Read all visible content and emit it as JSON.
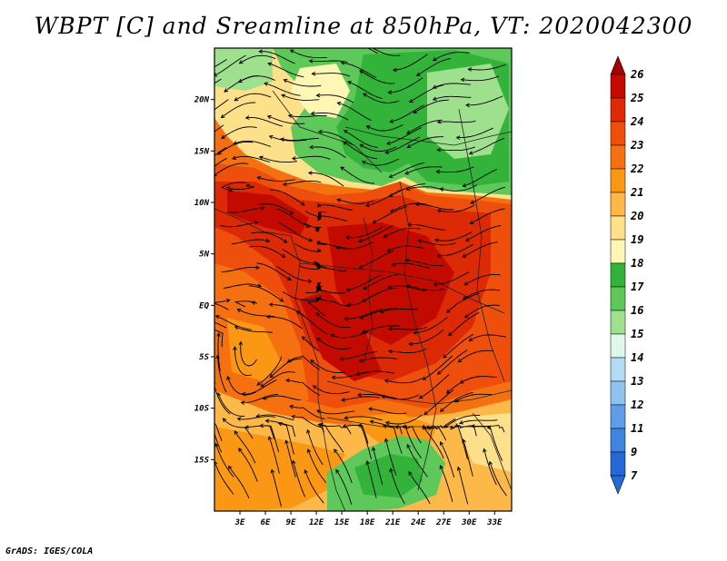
{
  "title": "WBPT [C] and Sreamline at 850hPa, VT: 2020042300",
  "credit": "GrADS: IGES/COLA",
  "map": {
    "variable": "Wet-bulb potential temperature",
    "units": "C",
    "level": "850hPa",
    "valid_time": "2020042300",
    "lon_range": [
      0,
      35
    ],
    "lat_range": [
      -20,
      25
    ],
    "lat_ticks": [
      {
        "value": 20,
        "label": "20N"
      },
      {
        "value": 15,
        "label": "15N"
      },
      {
        "value": 10,
        "label": "10N"
      },
      {
        "value": 5,
        "label": "5N"
      },
      {
        "value": 0,
        "label": "EQ"
      },
      {
        "value": -5,
        "label": "5S"
      },
      {
        "value": -10,
        "label": "10S"
      },
      {
        "value": -15,
        "label": "15S"
      }
    ],
    "lon_ticks": [
      {
        "value": 3,
        "label": "3E"
      },
      {
        "value": 6,
        "label": "6E"
      },
      {
        "value": 9,
        "label": "9E"
      },
      {
        "value": 12,
        "label": "12E"
      },
      {
        "value": 15,
        "label": "15E"
      },
      {
        "value": 18,
        "label": "18E"
      },
      {
        "value": 21,
        "label": "21E"
      },
      {
        "value": 24,
        "label": "24E"
      },
      {
        "value": 27,
        "label": "27E"
      },
      {
        "value": 30,
        "label": "30E"
      },
      {
        "value": 33,
        "label": "33E"
      }
    ]
  },
  "colorbar": {
    "levels": [
      {
        "label": "26",
        "color": "#a50000"
      },
      {
        "label": "25",
        "color": "#c20a00"
      },
      {
        "label": "24",
        "color": "#dc2a06"
      },
      {
        "label": "23",
        "color": "#ee4f0c"
      },
      {
        "label": "22",
        "color": "#f57010"
      },
      {
        "label": "21",
        "color": "#fa9715"
      },
      {
        "label": "20",
        "color": "#fdb84a"
      },
      {
        "label": "19",
        "color": "#fde08a"
      },
      {
        "label": "18",
        "color": "#fef6b4"
      },
      {
        "label": "17",
        "color": "#33b33a"
      },
      {
        "label": "16",
        "color": "#5ec85a"
      },
      {
        "label": "15",
        "color": "#9fe08e"
      },
      {
        "label": "14",
        "color": "#e0f7ec"
      },
      {
        "label": "13",
        "color": "#b6dcf5"
      },
      {
        "label": "12",
        "color": "#8ec2ef"
      },
      {
        "label": "11",
        "color": "#5f9ee6"
      },
      {
        "label": "9",
        "color": "#3f84de"
      },
      {
        "label": "7",
        "color": "#2569d8"
      }
    ]
  }
}
